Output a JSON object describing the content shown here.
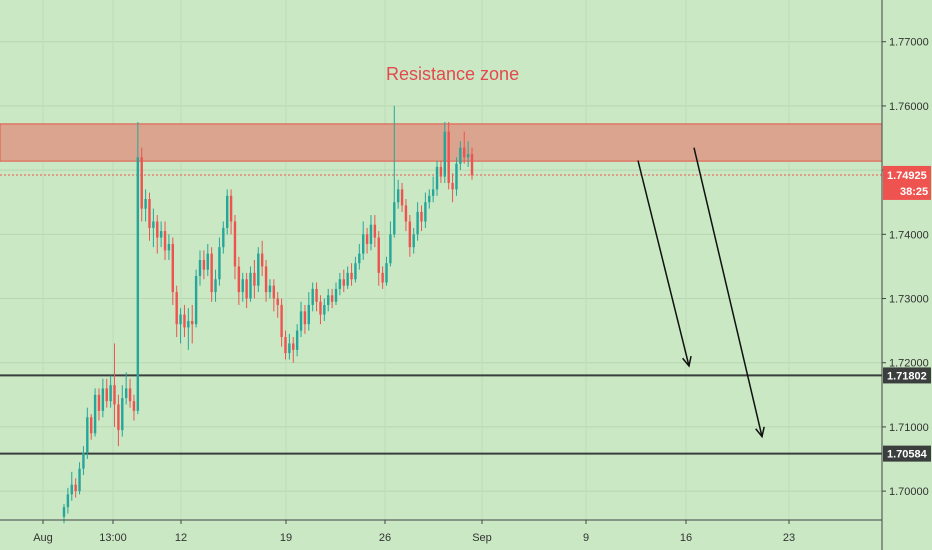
{
  "chart_data": {
    "type": "candlestick",
    "x_tick_labels": [
      "Aug",
      "13:00",
      "12",
      "19",
      "26",
      "Sep",
      "9",
      "16",
      "23"
    ],
    "y_tick_labels": [
      "1.77000",
      "1.76000",
      "1.75000",
      "1.74000",
      "1.73000",
      "1.72000",
      "1.71000",
      "1.70000"
    ],
    "ylim": [
      1.6955,
      1.7765
    ],
    "y_ticks": [
      1.77,
      1.76,
      1.75,
      1.74,
      1.73,
      1.72,
      1.71,
      1.7
    ],
    "resistance_zone": {
      "label": "Resistance zone",
      "low": 1.7514,
      "high": 1.7572
    },
    "horizontal_levels": [
      {
        "value": 1.71802,
        "label": "1.71802"
      },
      {
        "value": 1.70584,
        "label": "1.70584"
      }
    ],
    "last_price": {
      "value": 1.74925,
      "label": "1.74925",
      "countdown": "38:25"
    },
    "arrows": [
      {
        "from_x": 638,
        "from_price": 1.7515,
        "to_x": 689,
        "to_price": 1.7195
      },
      {
        "from_x": 694,
        "from_price": 1.7535,
        "to_x": 762,
        "to_price": 1.7085
      }
    ],
    "candles": [
      [
        1.696,
        1.6975,
        1.695,
        1.698
      ],
      [
        1.6975,
        1.6995,
        1.6965,
        1.7005
      ],
      [
        1.6995,
        1.701,
        1.6985,
        1.703
      ],
      [
        1.701,
        1.7,
        1.699,
        1.702
      ],
      [
        1.7,
        1.7035,
        1.6995,
        1.7045
      ],
      [
        1.7035,
        1.706,
        1.7025,
        1.707
      ],
      [
        1.706,
        1.7115,
        1.705,
        1.713
      ],
      [
        1.7115,
        1.709,
        1.708,
        1.712
      ],
      [
        1.709,
        1.715,
        1.7085,
        1.716
      ],
      [
        1.715,
        1.7125,
        1.711,
        1.716
      ],
      [
        1.7125,
        1.716,
        1.7115,
        1.7175
      ],
      [
        1.716,
        1.714,
        1.713,
        1.7175
      ],
      [
        1.714,
        1.7165,
        1.713,
        1.718
      ],
      [
        1.7165,
        1.7135,
        1.71,
        1.723
      ],
      [
        1.7135,
        1.7095,
        1.707,
        1.715
      ],
      [
        1.7095,
        1.7145,
        1.7085,
        1.7165
      ],
      [
        1.7145,
        1.716,
        1.7135,
        1.7185
      ],
      [
        1.716,
        1.714,
        1.713,
        1.7175
      ],
      [
        1.714,
        1.7125,
        1.711,
        1.715
      ],
      [
        1.7125,
        1.752,
        1.712,
        1.7575
      ],
      [
        1.752,
        1.744,
        1.742,
        1.7535
      ],
      [
        1.744,
        1.7455,
        1.742,
        1.747
      ],
      [
        1.7455,
        1.741,
        1.739,
        1.7465
      ],
      [
        1.741,
        1.742,
        1.738,
        1.744
      ],
      [
        1.742,
        1.7395,
        1.737,
        1.743
      ],
      [
        1.7395,
        1.7405,
        1.738,
        1.742
      ],
      [
        1.7405,
        1.7375,
        1.736,
        1.742
      ],
      [
        1.7375,
        1.7385,
        1.736,
        1.74
      ],
      [
        1.7385,
        1.731,
        1.729,
        1.7395
      ],
      [
        1.731,
        1.726,
        1.724,
        1.732
      ],
      [
        1.726,
        1.7275,
        1.723,
        1.7285
      ],
      [
        1.7275,
        1.7255,
        1.724,
        1.729
      ],
      [
        1.7255,
        1.7265,
        1.722,
        1.7285
      ],
      [
        1.7265,
        1.726,
        1.723,
        1.729
      ],
      [
        1.726,
        1.7335,
        1.7255,
        1.7345
      ],
      [
        1.7335,
        1.736,
        1.732,
        1.7375
      ],
      [
        1.736,
        1.7345,
        1.733,
        1.7375
      ],
      [
        1.7345,
        1.737,
        1.7335,
        1.7385
      ],
      [
        1.737,
        1.731,
        1.7295,
        1.738
      ],
      [
        1.731,
        1.733,
        1.7295,
        1.7345
      ],
      [
        1.733,
        1.738,
        1.732,
        1.7395
      ],
      [
        1.738,
        1.741,
        1.737,
        1.742
      ],
      [
        1.741,
        1.746,
        1.74,
        1.747
      ],
      [
        1.746,
        1.742,
        1.74,
        1.747
      ],
      [
        1.742,
        1.735,
        1.733,
        1.743
      ],
      [
        1.735,
        1.731,
        1.729,
        1.7365
      ],
      [
        1.731,
        1.733,
        1.7295,
        1.734
      ],
      [
        1.733,
        1.73,
        1.7285,
        1.734
      ],
      [
        1.73,
        1.734,
        1.7295,
        1.735
      ],
      [
        1.734,
        1.732,
        1.73,
        1.736
      ],
      [
        1.732,
        1.737,
        1.731,
        1.738
      ],
      [
        1.737,
        1.735,
        1.7335,
        1.739
      ],
      [
        1.735,
        1.731,
        1.7295,
        1.736
      ],
      [
        1.731,
        1.732,
        1.73,
        1.733
      ],
      [
        1.732,
        1.73,
        1.728,
        1.733
      ],
      [
        1.73,
        1.729,
        1.727,
        1.731
      ],
      [
        1.729,
        1.724,
        1.7225,
        1.73
      ],
      [
        1.724,
        1.7215,
        1.7205,
        1.725
      ],
      [
        1.7215,
        1.723,
        1.7205,
        1.7245
      ],
      [
        1.723,
        1.722,
        1.72,
        1.724
      ],
      [
        1.722,
        1.725,
        1.721,
        1.726
      ],
      [
        1.725,
        1.728,
        1.724,
        1.7295
      ],
      [
        1.728,
        1.726,
        1.7245,
        1.729
      ],
      [
        1.726,
        1.729,
        1.725,
        1.731
      ],
      [
        1.729,
        1.7315,
        1.728,
        1.7325
      ],
      [
        1.7315,
        1.7295,
        1.728,
        1.7325
      ],
      [
        1.7295,
        1.7275,
        1.726,
        1.7305
      ],
      [
        1.7275,
        1.729,
        1.7265,
        1.73
      ],
      [
        1.729,
        1.7305,
        1.728,
        1.7315
      ],
      [
        1.7305,
        1.7295,
        1.7285,
        1.7315
      ],
      [
        1.7295,
        1.7315,
        1.729,
        1.7325
      ],
      [
        1.7315,
        1.733,
        1.7305,
        1.734
      ],
      [
        1.733,
        1.732,
        1.731,
        1.7345
      ],
      [
        1.732,
        1.734,
        1.7315,
        1.735
      ],
      [
        1.734,
        1.733,
        1.732,
        1.7355
      ],
      [
        1.733,
        1.7355,
        1.7325,
        1.7365
      ],
      [
        1.7355,
        1.737,
        1.7345,
        1.7385
      ],
      [
        1.737,
        1.74,
        1.736,
        1.742
      ],
      [
        1.74,
        1.7385,
        1.737,
        1.741
      ],
      [
        1.7385,
        1.7415,
        1.7375,
        1.743
      ],
      [
        1.7415,
        1.7395,
        1.738,
        1.743
      ],
      [
        1.7395,
        1.734,
        1.732,
        1.7405
      ],
      [
        1.734,
        1.7325,
        1.7315,
        1.735
      ],
      [
        1.7325,
        1.7355,
        1.732,
        1.7365
      ],
      [
        1.7355,
        1.74,
        1.735,
        1.742
      ],
      [
        1.74,
        1.745,
        1.7395,
        1.76
      ],
      [
        1.745,
        1.747,
        1.744,
        1.7485
      ],
      [
        1.747,
        1.7445,
        1.7435,
        1.748
      ],
      [
        1.7445,
        1.742,
        1.7405,
        1.7455
      ],
      [
        1.742,
        1.738,
        1.7365,
        1.743
      ],
      [
        1.738,
        1.74,
        1.737,
        1.741
      ],
      [
        1.74,
        1.7435,
        1.739,
        1.745
      ],
      [
        1.7435,
        1.742,
        1.7405,
        1.7445
      ],
      [
        1.742,
        1.745,
        1.741,
        1.7465
      ],
      [
        1.745,
        1.746,
        1.744,
        1.747
      ],
      [
        1.746,
        1.747,
        1.745,
        1.749
      ],
      [
        1.747,
        1.7505,
        1.746,
        1.7515
      ],
      [
        1.7505,
        1.749,
        1.748,
        1.7515
      ],
      [
        1.749,
        1.756,
        1.748,
        1.7575
      ],
      [
        1.756,
        1.748,
        1.747,
        1.7575
      ],
      [
        1.748,
        1.747,
        1.745,
        1.7495
      ],
      [
        1.747,
        1.751,
        1.746,
        1.752
      ],
      [
        1.751,
        1.7535,
        1.75,
        1.7545
      ],
      [
        1.7535,
        1.752,
        1.751,
        1.756
      ],
      [
        1.752,
        1.7525,
        1.7505,
        1.7545
      ],
      [
        1.7525,
        1.7492,
        1.7485,
        1.7535
      ]
    ]
  },
  "colors": {
    "background": "#c9e8c3",
    "up": "#26a69a",
    "down": "#ef5350",
    "zone_fill": "#dba48e",
    "zone_border": "#e2574a",
    "level_line": "#3a3f3e",
    "arrow": "#111111",
    "axis_text": "#333333"
  }
}
